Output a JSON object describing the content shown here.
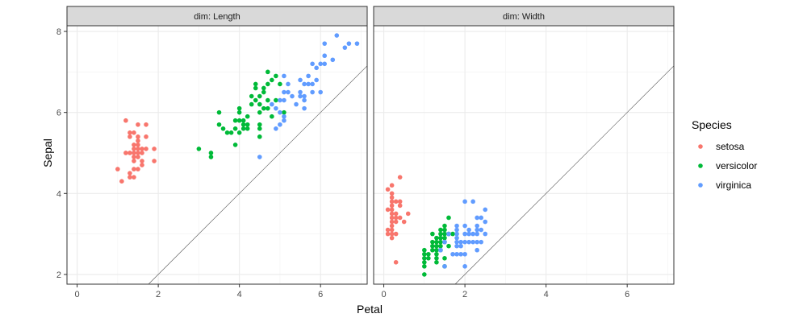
{
  "chart_data": {
    "type": "scatter",
    "facet_variable": "dim",
    "xlabel": "Petal",
    "ylabel": "Sepal",
    "xlim": [
      -0.25,
      7.15
    ],
    "ylim": [
      1.76,
      8.14
    ],
    "x_ticks": [
      0,
      2,
      4,
      6
    ],
    "y_ticks": [
      2,
      4,
      6,
      8
    ],
    "reference_line": {
      "slope": 1,
      "intercept": 0
    },
    "legend": {
      "title": "Species",
      "position": "right"
    },
    "grid": true,
    "series_colors": {
      "setosa": "#F8766D",
      "versicolor": "#00BA38",
      "virginica": "#619CFF"
    },
    "panels": [
      {
        "label": "dim: Length",
        "series": [
          {
            "name": "setosa",
            "points": [
              [
                1.0,
                4.6
              ],
              [
                1.1,
                4.3
              ],
              [
                1.2,
                5.0
              ],
              [
                1.2,
                5.8
              ],
              [
                1.3,
                4.4
              ],
              [
                1.3,
                4.5
              ],
              [
                1.3,
                5.0
              ],
              [
                1.3,
                5.4
              ],
              [
                1.3,
                5.5
              ],
              [
                1.4,
                4.4
              ],
              [
                1.4,
                4.6
              ],
              [
                1.4,
                4.8
              ],
              [
                1.4,
                4.9
              ],
              [
                1.4,
                5.0
              ],
              [
                1.4,
                5.1
              ],
              [
                1.4,
                5.2
              ],
              [
                1.4,
                5.5
              ],
              [
                1.5,
                4.6
              ],
              [
                1.5,
                4.9
              ],
              [
                1.5,
                5.0
              ],
              [
                1.5,
                5.1
              ],
              [
                1.5,
                5.2
              ],
              [
                1.5,
                5.3
              ],
              [
                1.5,
                5.4
              ],
              [
                1.5,
                5.7
              ],
              [
                1.6,
                4.7
              ],
              [
                1.6,
                4.8
              ],
              [
                1.6,
                5.0
              ],
              [
                1.6,
                5.1
              ],
              [
                1.7,
                5.1
              ],
              [
                1.7,
                5.4
              ],
              [
                1.7,
                5.7
              ],
              [
                1.9,
                4.8
              ],
              [
                1.9,
                5.1
              ]
            ]
          },
          {
            "name": "versicolor",
            "points": [
              [
                3.0,
                5.1
              ],
              [
                3.3,
                4.9
              ],
              [
                3.3,
                5.0
              ],
              [
                3.5,
                5.7
              ],
              [
                3.5,
                6.0
              ],
              [
                3.6,
                5.6
              ],
              [
                3.7,
                5.5
              ],
              [
                3.8,
                5.5
              ],
              [
                3.9,
                5.2
              ],
              [
                3.9,
                5.6
              ],
              [
                3.9,
                5.8
              ],
              [
                4.0,
                5.5
              ],
              [
                4.0,
                5.8
              ],
              [
                4.0,
                6.0
              ],
              [
                4.0,
                6.1
              ],
              [
                4.1,
                5.6
              ],
              [
                4.1,
                5.7
              ],
              [
                4.1,
                5.8
              ],
              [
                4.2,
                5.6
              ],
              [
                4.2,
                5.7
              ],
              [
                4.2,
                5.9
              ],
              [
                4.3,
                6.2
              ],
              [
                4.3,
                6.4
              ],
              [
                4.4,
                6.3
              ],
              [
                4.4,
                6.6
              ],
              [
                4.4,
                6.7
              ],
              [
                4.5,
                5.4
              ],
              [
                4.5,
                5.6
              ],
              [
                4.5,
                5.7
              ],
              [
                4.5,
                6.0
              ],
              [
                4.5,
                6.2
              ],
              [
                4.5,
                6.4
              ],
              [
                4.6,
                6.1
              ],
              [
                4.6,
                6.5
              ],
              [
                4.6,
                6.6
              ],
              [
                4.7,
                6.1
              ],
              [
                4.7,
                6.3
              ],
              [
                4.7,
                6.7
              ],
              [
                4.7,
                7.0
              ],
              [
                4.8,
                5.9
              ],
              [
                4.8,
                6.8
              ],
              [
                4.9,
                6.3
              ],
              [
                4.9,
                6.9
              ],
              [
                5.0,
                6.7
              ],
              [
                5.1,
                6.0
              ]
            ]
          },
          {
            "name": "virginica",
            "points": [
              [
                4.5,
                4.9
              ],
              [
                4.8,
                6.2
              ],
              [
                4.9,
                5.6
              ],
              [
                4.9,
                6.1
              ],
              [
                5.0,
                5.7
              ],
              [
                5.0,
                6.0
              ],
              [
                5.0,
                6.3
              ],
              [
                5.1,
                5.8
              ],
              [
                5.1,
                5.9
              ],
              [
                5.1,
                6.3
              ],
              [
                5.1,
                6.5
              ],
              [
                5.1,
                6.9
              ],
              [
                5.2,
                6.5
              ],
              [
                5.2,
                6.7
              ],
              [
                5.3,
                6.4
              ],
              [
                5.4,
                6.2
              ],
              [
                5.5,
                6.4
              ],
              [
                5.5,
                6.5
              ],
              [
                5.5,
                6.8
              ],
              [
                5.6,
                6.1
              ],
              [
                5.6,
                6.3
              ],
              [
                5.6,
                6.4
              ],
              [
                5.6,
                6.7
              ],
              [
                5.7,
                6.7
              ],
              [
                5.7,
                6.9
              ],
              [
                5.8,
                6.5
              ],
              [
                5.8,
                6.7
              ],
              [
                5.8,
                7.2
              ],
              [
                5.9,
                6.8
              ],
              [
                5.9,
                7.1
              ],
              [
                6.0,
                6.5
              ],
              [
                6.0,
                7.2
              ],
              [
                6.1,
                7.2
              ],
              [
                6.1,
                7.4
              ],
              [
                6.1,
                7.7
              ],
              [
                6.3,
                7.3
              ],
              [
                6.4,
                7.9
              ],
              [
                6.6,
                7.6
              ],
              [
                6.7,
                7.7
              ],
              [
                6.9,
                7.7
              ]
            ]
          }
        ]
      },
      {
        "label": "dim: Width",
        "series": [
          {
            "name": "setosa",
            "points": [
              [
                0.1,
                3.0
              ],
              [
                0.1,
                3.1
              ],
              [
                0.1,
                3.6
              ],
              [
                0.1,
                4.1
              ],
              [
                0.2,
                2.9
              ],
              [
                0.2,
                3.0
              ],
              [
                0.2,
                3.1
              ],
              [
                0.2,
                3.2
              ],
              [
                0.2,
                3.3
              ],
              [
                0.2,
                3.4
              ],
              [
                0.2,
                3.5
              ],
              [
                0.2,
                3.6
              ],
              [
                0.2,
                3.7
              ],
              [
                0.2,
                3.8
              ],
              [
                0.2,
                3.9
              ],
              [
                0.2,
                4.0
              ],
              [
                0.2,
                4.2
              ],
              [
                0.3,
                2.3
              ],
              [
                0.3,
                3.0
              ],
              [
                0.3,
                3.3
              ],
              [
                0.3,
                3.4
              ],
              [
                0.3,
                3.5
              ],
              [
                0.3,
                3.8
              ],
              [
                0.4,
                3.4
              ],
              [
                0.4,
                3.7
              ],
              [
                0.4,
                3.8
              ],
              [
                0.4,
                4.4
              ],
              [
                0.5,
                3.3
              ],
              [
                0.6,
                3.5
              ]
            ]
          },
          {
            "name": "versicolor",
            "points": [
              [
                1.0,
                2.0
              ],
              [
                1.0,
                2.2
              ],
              [
                1.0,
                2.3
              ],
              [
                1.0,
                2.4
              ],
              [
                1.0,
                2.5
              ],
              [
                1.0,
                2.6
              ],
              [
                1.1,
                2.4
              ],
              [
                1.1,
                2.5
              ],
              [
                1.2,
                2.6
              ],
              [
                1.2,
                2.7
              ],
              [
                1.2,
                2.8
              ],
              [
                1.2,
                3.0
              ],
              [
                1.3,
                2.3
              ],
              [
                1.3,
                2.4
              ],
              [
                1.3,
                2.5
              ],
              [
                1.3,
                2.6
              ],
              [
                1.3,
                2.7
              ],
              [
                1.3,
                2.8
              ],
              [
                1.3,
                2.9
              ],
              [
                1.4,
                2.6
              ],
              [
                1.4,
                2.7
              ],
              [
                1.4,
                2.8
              ],
              [
                1.4,
                2.9
              ],
              [
                1.4,
                3.0
              ],
              [
                1.4,
                3.1
              ],
              [
                1.5,
                2.2
              ],
              [
                1.5,
                2.4
              ],
              [
                1.5,
                2.8
              ],
              [
                1.5,
                2.9
              ],
              [
                1.5,
                3.0
              ],
              [
                1.5,
                3.1
              ],
              [
                1.5,
                3.2
              ],
              [
                1.6,
                2.7
              ],
              [
                1.6,
                3.0
              ],
              [
                1.6,
                3.4
              ],
              [
                1.7,
                3.0
              ]
            ]
          },
          {
            "name": "virginica",
            "points": [
              [
                1.4,
                2.6
              ],
              [
                1.5,
                2.2
              ],
              [
                1.5,
                2.8
              ],
              [
                1.6,
                3.0
              ],
              [
                1.7,
                2.5
              ],
              [
                1.8,
                2.5
              ],
              [
                1.8,
                2.7
              ],
              [
                1.8,
                2.8
              ],
              [
                1.8,
                2.9
              ],
              [
                1.8,
                3.0
              ],
              [
                1.8,
                3.1
              ],
              [
                1.8,
                3.2
              ],
              [
                1.9,
                2.5
              ],
              [
                1.9,
                2.7
              ],
              [
                1.9,
                2.8
              ],
              [
                2.0,
                2.2
              ],
              [
                2.0,
                2.5
              ],
              [
                2.0,
                2.8
              ],
              [
                2.0,
                3.0
              ],
              [
                2.0,
                3.2
              ],
              [
                2.0,
                3.8
              ],
              [
                2.1,
                2.8
              ],
              [
                2.1,
                3.0
              ],
              [
                2.1,
                3.1
              ],
              [
                2.2,
                2.8
              ],
              [
                2.2,
                3.0
              ],
              [
                2.2,
                3.8
              ],
              [
                2.3,
                2.6
              ],
              [
                2.3,
                2.8
              ],
              [
                2.3,
                3.0
              ],
              [
                2.3,
                3.1
              ],
              [
                2.3,
                3.2
              ],
              [
                2.3,
                3.4
              ],
              [
                2.4,
                2.8
              ],
              [
                2.4,
                3.1
              ],
              [
                2.4,
                3.4
              ],
              [
                2.5,
                3.0
              ],
              [
                2.5,
                3.3
              ],
              [
                2.5,
                3.6
              ]
            ]
          }
        ]
      }
    ]
  }
}
